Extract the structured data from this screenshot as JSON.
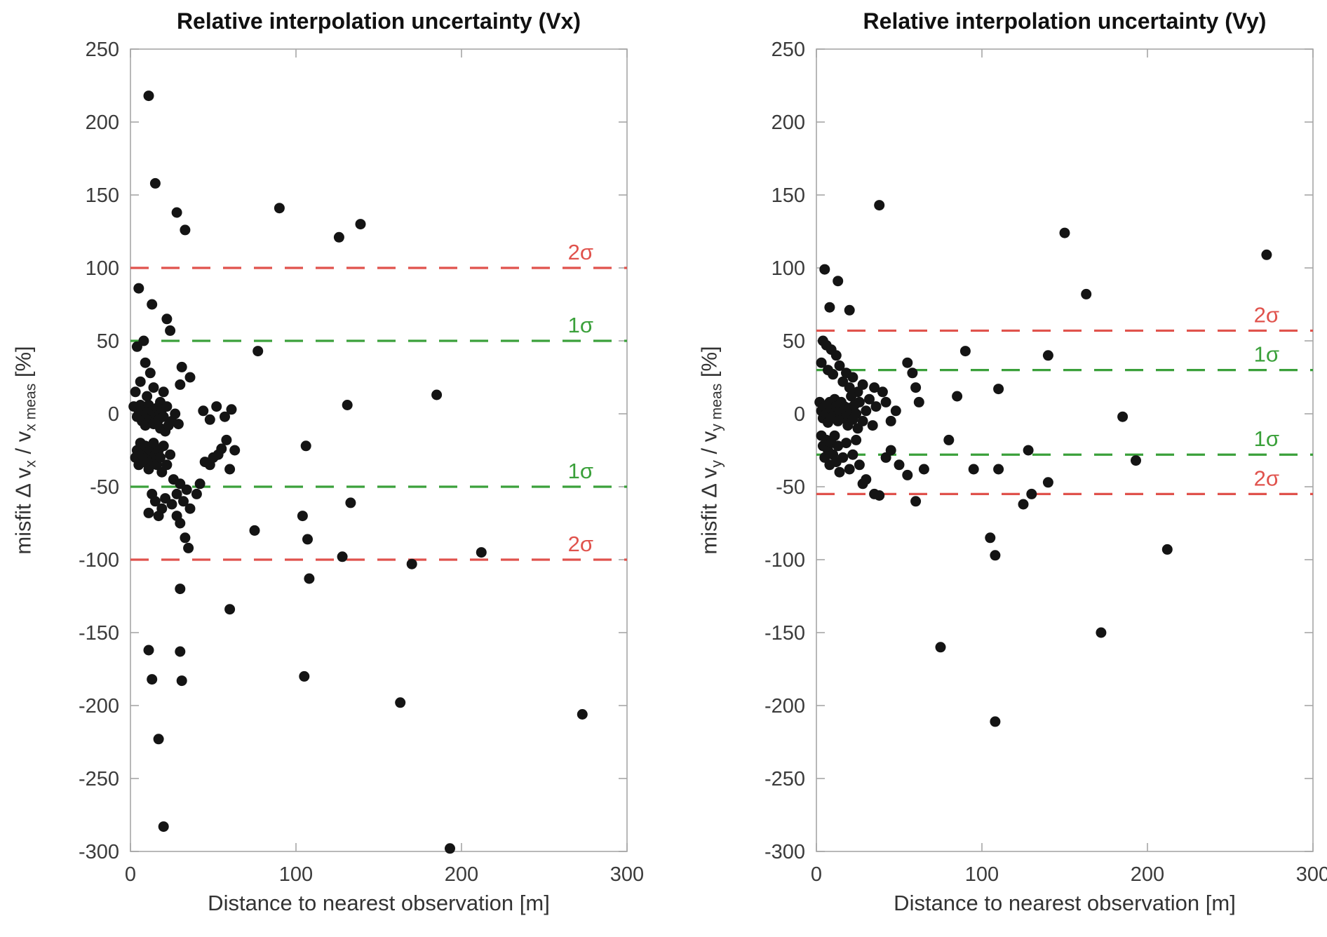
{
  "figure": {
    "background": "#ffffff",
    "axis_color": "#a6a6a6",
    "tick_label_color": "#3b3b3b"
  },
  "chart_data": [
    {
      "type": "scatter",
      "title": "Relative interpolation uncertainty (Vx)",
      "xlabel": "Distance to nearest observation [m]",
      "ylabel_segments": [
        {
          "text": "misfit Δ v"
        },
        {
          "text": "x",
          "sub": true
        },
        {
          "text": " / v"
        },
        {
          "text": "x meas",
          "sub": true
        },
        {
          "text": " [%]"
        }
      ],
      "xlim": [
        0,
        300
      ],
      "ylim": [
        -300,
        250
      ],
      "xticks": [
        0,
        100,
        200,
        300
      ],
      "yticks": [
        -300,
        -250,
        -200,
        -150,
        -100,
        -50,
        0,
        50,
        100,
        150,
        200,
        250
      ],
      "marker_color": "#141414",
      "grid": false,
      "legend": "none",
      "sigma_lines": [
        {
          "label": "2σ",
          "value": 100,
          "color": "#e0524c"
        },
        {
          "label": "1σ",
          "value": 50,
          "color": "#3aa03a"
        },
        {
          "label": "1σ",
          "value": -50,
          "color": "#3aa03a"
        },
        {
          "label": "2σ",
          "value": -100,
          "color": "#e0524c"
        }
      ],
      "points": [
        [
          11,
          218
        ],
        [
          15,
          158
        ],
        [
          28,
          138
        ],
        [
          33,
          126
        ],
        [
          90,
          141
        ],
        [
          126,
          121
        ],
        [
          139,
          130
        ],
        [
          5,
          86
        ],
        [
          13,
          75
        ],
        [
          22,
          65
        ],
        [
          24,
          57
        ],
        [
          8,
          50
        ],
        [
          4,
          46
        ],
        [
          77,
          43
        ],
        [
          31,
          32
        ],
        [
          36,
          25
        ],
        [
          12,
          28
        ],
        [
          9,
          35
        ],
        [
          6,
          22
        ],
        [
          3,
          15
        ],
        [
          10,
          12
        ],
        [
          14,
          18
        ],
        [
          18,
          8
        ],
        [
          20,
          15
        ],
        [
          30,
          20
        ],
        [
          2,
          5
        ],
        [
          4,
          -2
        ],
        [
          5,
          0
        ],
        [
          6,
          6
        ],
        [
          7,
          -5
        ],
        [
          8,
          2
        ],
        [
          9,
          -8
        ],
        [
          10,
          0
        ],
        [
          11,
          6
        ],
        [
          12,
          -3
        ],
        [
          13,
          2
        ],
        [
          14,
          -7
        ],
        [
          15,
          0
        ],
        [
          16,
          4
        ],
        [
          17,
          -4
        ],
        [
          18,
          -10
        ],
        [
          19,
          3
        ],
        [
          20,
          -2
        ],
        [
          21,
          -12
        ],
        [
          22,
          5
        ],
        [
          23,
          -8
        ],
        [
          25,
          -5
        ],
        [
          27,
          0
        ],
        [
          29,
          -7
        ],
        [
          44,
          2
        ],
        [
          48,
          -4
        ],
        [
          52,
          5
        ],
        [
          57,
          -2
        ],
        [
          61,
          3
        ],
        [
          48,
          -35
        ],
        [
          53,
          -28
        ],
        [
          58,
          -18
        ],
        [
          63,
          -25
        ],
        [
          3,
          -30
        ],
        [
          4,
          -25
        ],
        [
          5,
          -35
        ],
        [
          6,
          -20
        ],
        [
          7,
          -28
        ],
        [
          8,
          -33
        ],
        [
          9,
          -22
        ],
        [
          10,
          -30
        ],
        [
          11,
          -38
        ],
        [
          12,
          -25
        ],
        [
          13,
          -32
        ],
        [
          14,
          -20
        ],
        [
          15,
          -28
        ],
        [
          16,
          -35
        ],
        [
          17,
          -25
        ],
        [
          18,
          -30
        ],
        [
          19,
          -40
        ],
        [
          20,
          -22
        ],
        [
          22,
          -35
        ],
        [
          24,
          -28
        ],
        [
          26,
          -45
        ],
        [
          28,
          -55
        ],
        [
          30,
          -48
        ],
        [
          32,
          -60
        ],
        [
          34,
          -52
        ],
        [
          36,
          -65
        ],
        [
          25,
          -62
        ],
        [
          21,
          -58
        ],
        [
          19,
          -65
        ],
        [
          17,
          -70
        ],
        [
          15,
          -60
        ],
        [
          13,
          -55
        ],
        [
          11,
          -68
        ],
        [
          30,
          -75
        ],
        [
          33,
          -85
        ],
        [
          35,
          -92
        ],
        [
          28,
          -70
        ],
        [
          40,
          -55
        ],
        [
          42,
          -48
        ],
        [
          45,
          -33
        ],
        [
          50,
          -30
        ],
        [
          55,
          -24
        ],
        [
          60,
          -38
        ],
        [
          75,
          -80
        ],
        [
          104,
          -70
        ],
        [
          107,
          -86
        ],
        [
          108,
          -113
        ],
        [
          106,
          -22
        ],
        [
          128,
          -98
        ],
        [
          133,
          -61
        ],
        [
          131,
          6
        ],
        [
          170,
          -103
        ],
        [
          185,
          13
        ],
        [
          212,
          -95
        ],
        [
          11,
          -162
        ],
        [
          13,
          -182
        ],
        [
          17,
          -223
        ],
        [
          20,
          -283
        ],
        [
          30,
          -163
        ],
        [
          31,
          -183
        ],
        [
          30,
          -120
        ],
        [
          60,
          -134
        ],
        [
          105,
          -180
        ],
        [
          163,
          -198
        ],
        [
          273,
          -206
        ],
        [
          193,
          -298
        ]
      ]
    },
    {
      "type": "scatter",
      "title": "Relative interpolation uncertainty (Vy)",
      "xlabel": "Distance to nearest observation [m]",
      "ylabel_segments": [
        {
          "text": "misfit Δ v"
        },
        {
          "text": "y",
          "sub": true
        },
        {
          "text": " / v"
        },
        {
          "text": "y meas",
          "sub": true
        },
        {
          "text": " [%]"
        }
      ],
      "xlim": [
        0,
        300
      ],
      "ylim": [
        -300,
        250
      ],
      "xticks": [
        0,
        100,
        200,
        300
      ],
      "yticks": [
        -300,
        -250,
        -200,
        -150,
        -100,
        -50,
        0,
        50,
        100,
        150,
        200,
        250
      ],
      "marker_color": "#141414",
      "grid": false,
      "legend": "none",
      "sigma_lines": [
        {
          "label": "2σ",
          "value": 57,
          "color": "#e0524c"
        },
        {
          "label": "1σ",
          "value": 30,
          "color": "#3aa03a"
        },
        {
          "label": "1σ",
          "value": -28,
          "color": "#3aa03a"
        },
        {
          "label": "2σ",
          "value": -55,
          "color": "#e0524c"
        }
      ],
      "points": [
        [
          5,
          99
        ],
        [
          13,
          91
        ],
        [
          8,
          73
        ],
        [
          20,
          71
        ],
        [
          38,
          143
        ],
        [
          150,
          124
        ],
        [
          163,
          82
        ],
        [
          272,
          109
        ],
        [
          4,
          50
        ],
        [
          6,
          47
        ],
        [
          9,
          44
        ],
        [
          12,
          40
        ],
        [
          3,
          35
        ],
        [
          7,
          30
        ],
        [
          10,
          27
        ],
        [
          14,
          33
        ],
        [
          16,
          22
        ],
        [
          18,
          28
        ],
        [
          20,
          18
        ],
        [
          22,
          25
        ],
        [
          25,
          15
        ],
        [
          28,
          20
        ],
        [
          55,
          35
        ],
        [
          58,
          28
        ],
        [
          60,
          18
        ],
        [
          62,
          8
        ],
        [
          90,
          43
        ],
        [
          140,
          40
        ],
        [
          110,
          17
        ],
        [
          85,
          12
        ],
        [
          35,
          18
        ],
        [
          2,
          8
        ],
        [
          3,
          2
        ],
        [
          4,
          -3
        ],
        [
          5,
          5
        ],
        [
          6,
          0
        ],
        [
          7,
          -6
        ],
        [
          8,
          8
        ],
        [
          9,
          3
        ],
        [
          10,
          -2
        ],
        [
          11,
          10
        ],
        [
          12,
          5
        ],
        [
          13,
          -5
        ],
        [
          14,
          2
        ],
        [
          15,
          8
        ],
        [
          16,
          -3
        ],
        [
          17,
          5
        ],
        [
          18,
          0
        ],
        [
          19,
          -8
        ],
        [
          20,
          4
        ],
        [
          21,
          12
        ],
        [
          22,
          -4
        ],
        [
          23,
          6
        ],
        [
          24,
          0
        ],
        [
          25,
          -10
        ],
        [
          26,
          8
        ],
        [
          28,
          -5
        ],
        [
          30,
          2
        ],
        [
          32,
          10
        ],
        [
          34,
          -8
        ],
        [
          36,
          5
        ],
        [
          40,
          15
        ],
        [
          42,
          8
        ],
        [
          45,
          -5
        ],
        [
          48,
          2
        ],
        [
          3,
          -15
        ],
        [
          4,
          -22
        ],
        [
          5,
          -30
        ],
        [
          6,
          -18
        ],
        [
          7,
          -25
        ],
        [
          8,
          -35
        ],
        [
          9,
          -20
        ],
        [
          10,
          -28
        ],
        [
          11,
          -15
        ],
        [
          12,
          -33
        ],
        [
          13,
          -22
        ],
        [
          14,
          -40
        ],
        [
          16,
          -30
        ],
        [
          18,
          -20
        ],
        [
          20,
          -38
        ],
        [
          22,
          -28
        ],
        [
          24,
          -18
        ],
        [
          26,
          -35
        ],
        [
          30,
          -45
        ],
        [
          35,
          -55
        ],
        [
          38,
          -56
        ],
        [
          42,
          -30
        ],
        [
          50,
          -35
        ],
        [
          55,
          -42
        ],
        [
          60,
          -60
        ],
        [
          65,
          -38
        ],
        [
          45,
          -25
        ],
        [
          28,
          -48
        ],
        [
          75,
          -160
        ],
        [
          80,
          -18
        ],
        [
          95,
          -38
        ],
        [
          105,
          -85
        ],
        [
          108,
          -97
        ],
        [
          108,
          -211
        ],
        [
          110,
          -38
        ],
        [
          125,
          -62
        ],
        [
          130,
          -55
        ],
        [
          128,
          -25
        ],
        [
          140,
          -47
        ],
        [
          172,
          -150
        ],
        [
          185,
          -2
        ],
        [
          193,
          -32
        ],
        [
          212,
          -93
        ]
      ]
    }
  ]
}
